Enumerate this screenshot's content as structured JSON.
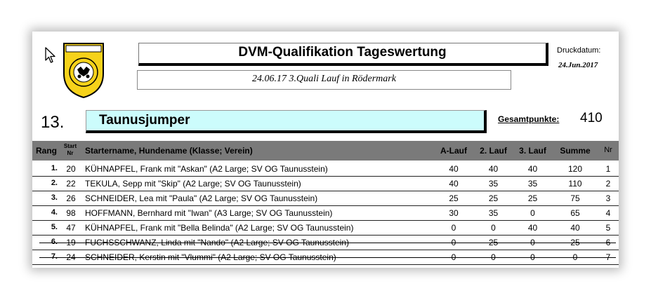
{
  "header": {
    "title": "DVM-Qualifikation Tageswertung",
    "subtitle": "24.06.17 3.Quali Lauf in Rödermark",
    "druck_label": "Druckdatum:",
    "druck_date": "24.Jun.2017"
  },
  "team": {
    "rank": "13.",
    "name": "Taunusjumper",
    "gesamt_label": "Gesamtpunkte:",
    "gesamt_value": "410"
  },
  "table": {
    "headers": {
      "rang": "Rang",
      "start": "Start",
      "start_nr": "Nr",
      "name": "Startername, Hundename (Klasse; Verein)",
      "a": "A-Lauf",
      "l2": "2. Lauf",
      "l3": "3. Lauf",
      "sum": "Summe",
      "nr": "Nr"
    },
    "rows": [
      {
        "rank": "1.",
        "start": "20",
        "name": "KÜHNAPFEL, Frank mit \"Askan\" (A2 Large; SV OG Taunusstein)",
        "a": "40",
        "l2": "40",
        "l3": "40",
        "sum": "120",
        "nr": "1",
        "struck": false
      },
      {
        "rank": "2.",
        "start": "22",
        "name": "TEKULA, Sepp mit \"Skip\" (A2 Large; SV OG Taunusstein)",
        "a": "40",
        "l2": "35",
        "l3": "35",
        "sum": "110",
        "nr": "2",
        "struck": false
      },
      {
        "rank": "3.",
        "start": "26",
        "name": "SCHNEIDER, Lea mit \"Paula\" (A2 Large; SV OG Taunusstein)",
        "a": "25",
        "l2": "25",
        "l3": "25",
        "sum": "75",
        "nr": "3",
        "struck": false
      },
      {
        "rank": "4.",
        "start": "98",
        "name": "HOFFMANN, Bernhard mit \"Iwan\" (A3 Large; SV OG Taunusstein)",
        "a": "30",
        "l2": "35",
        "l3": "0",
        "sum": "65",
        "nr": "4",
        "struck": false
      },
      {
        "rank": "5.",
        "start": "47",
        "name": "KÜHNAPFEL, Frank mit \"Bella Belinda\" (A2 Large; SV OG Taunusstein)",
        "a": "0",
        "l2": "0",
        "l3": "40",
        "sum": "40",
        "nr": "5",
        "struck": false
      },
      {
        "rank": "6.",
        "start": "19",
        "name": "FUCHSSCHWANZ, Linda mit \"Nando\" (A2 Large; SV OG Taunusstein)",
        "a": "0",
        "l2": "25",
        "l3": "0",
        "sum": "25",
        "nr": "6",
        "struck": true
      },
      {
        "rank": "7.",
        "start": "24",
        "name": "SCHNEIDER, Kerstin mit \"Vlummi\" (A2 Large; SV OG Taunusstein)",
        "a": "0",
        "l2": "0",
        "l3": "0",
        "sum": "0",
        "nr": "7",
        "struck": true
      }
    ]
  }
}
